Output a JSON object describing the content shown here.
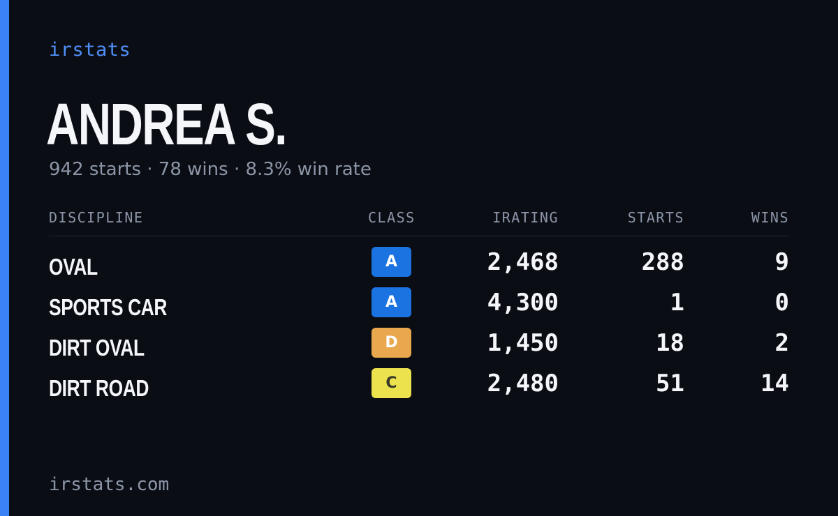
{
  "brand": {
    "name": "irstats",
    "footer_url": "irstats.com",
    "accent_color": "#3b82f6"
  },
  "player": {
    "name": "ANDREA S.",
    "starts_text": "942 starts",
    "wins_text": "78 wins",
    "win_rate_text": "8.3% win rate",
    "separator": "·"
  },
  "table": {
    "headers": {
      "discipline": "DISCIPLINE",
      "class": "CLASS",
      "irating": "IRATING",
      "starts": "STARTS",
      "wins": "WINS"
    },
    "rows": [
      {
        "discipline": "OVAL",
        "class": "A",
        "class_color": "#1a73e0",
        "class_text_color": "#ffffff",
        "irating": "2,468",
        "starts": "288",
        "wins": "9"
      },
      {
        "discipline": "SPORTS CAR",
        "class": "A",
        "class_color": "#1a73e0",
        "class_text_color": "#ffffff",
        "irating": "4,300",
        "starts": "1",
        "wins": "0"
      },
      {
        "discipline": "DIRT OVAL",
        "class": "D",
        "class_color": "#e9a84e",
        "class_text_color": "#ffffff",
        "irating": "1,450",
        "starts": "18",
        "wins": "2"
      },
      {
        "discipline": "DIRT ROAD",
        "class": "C",
        "class_color": "#ece24e",
        "class_text_color": "#3a3a2a",
        "irating": "2,480",
        "starts": "51",
        "wins": "14"
      }
    ]
  }
}
